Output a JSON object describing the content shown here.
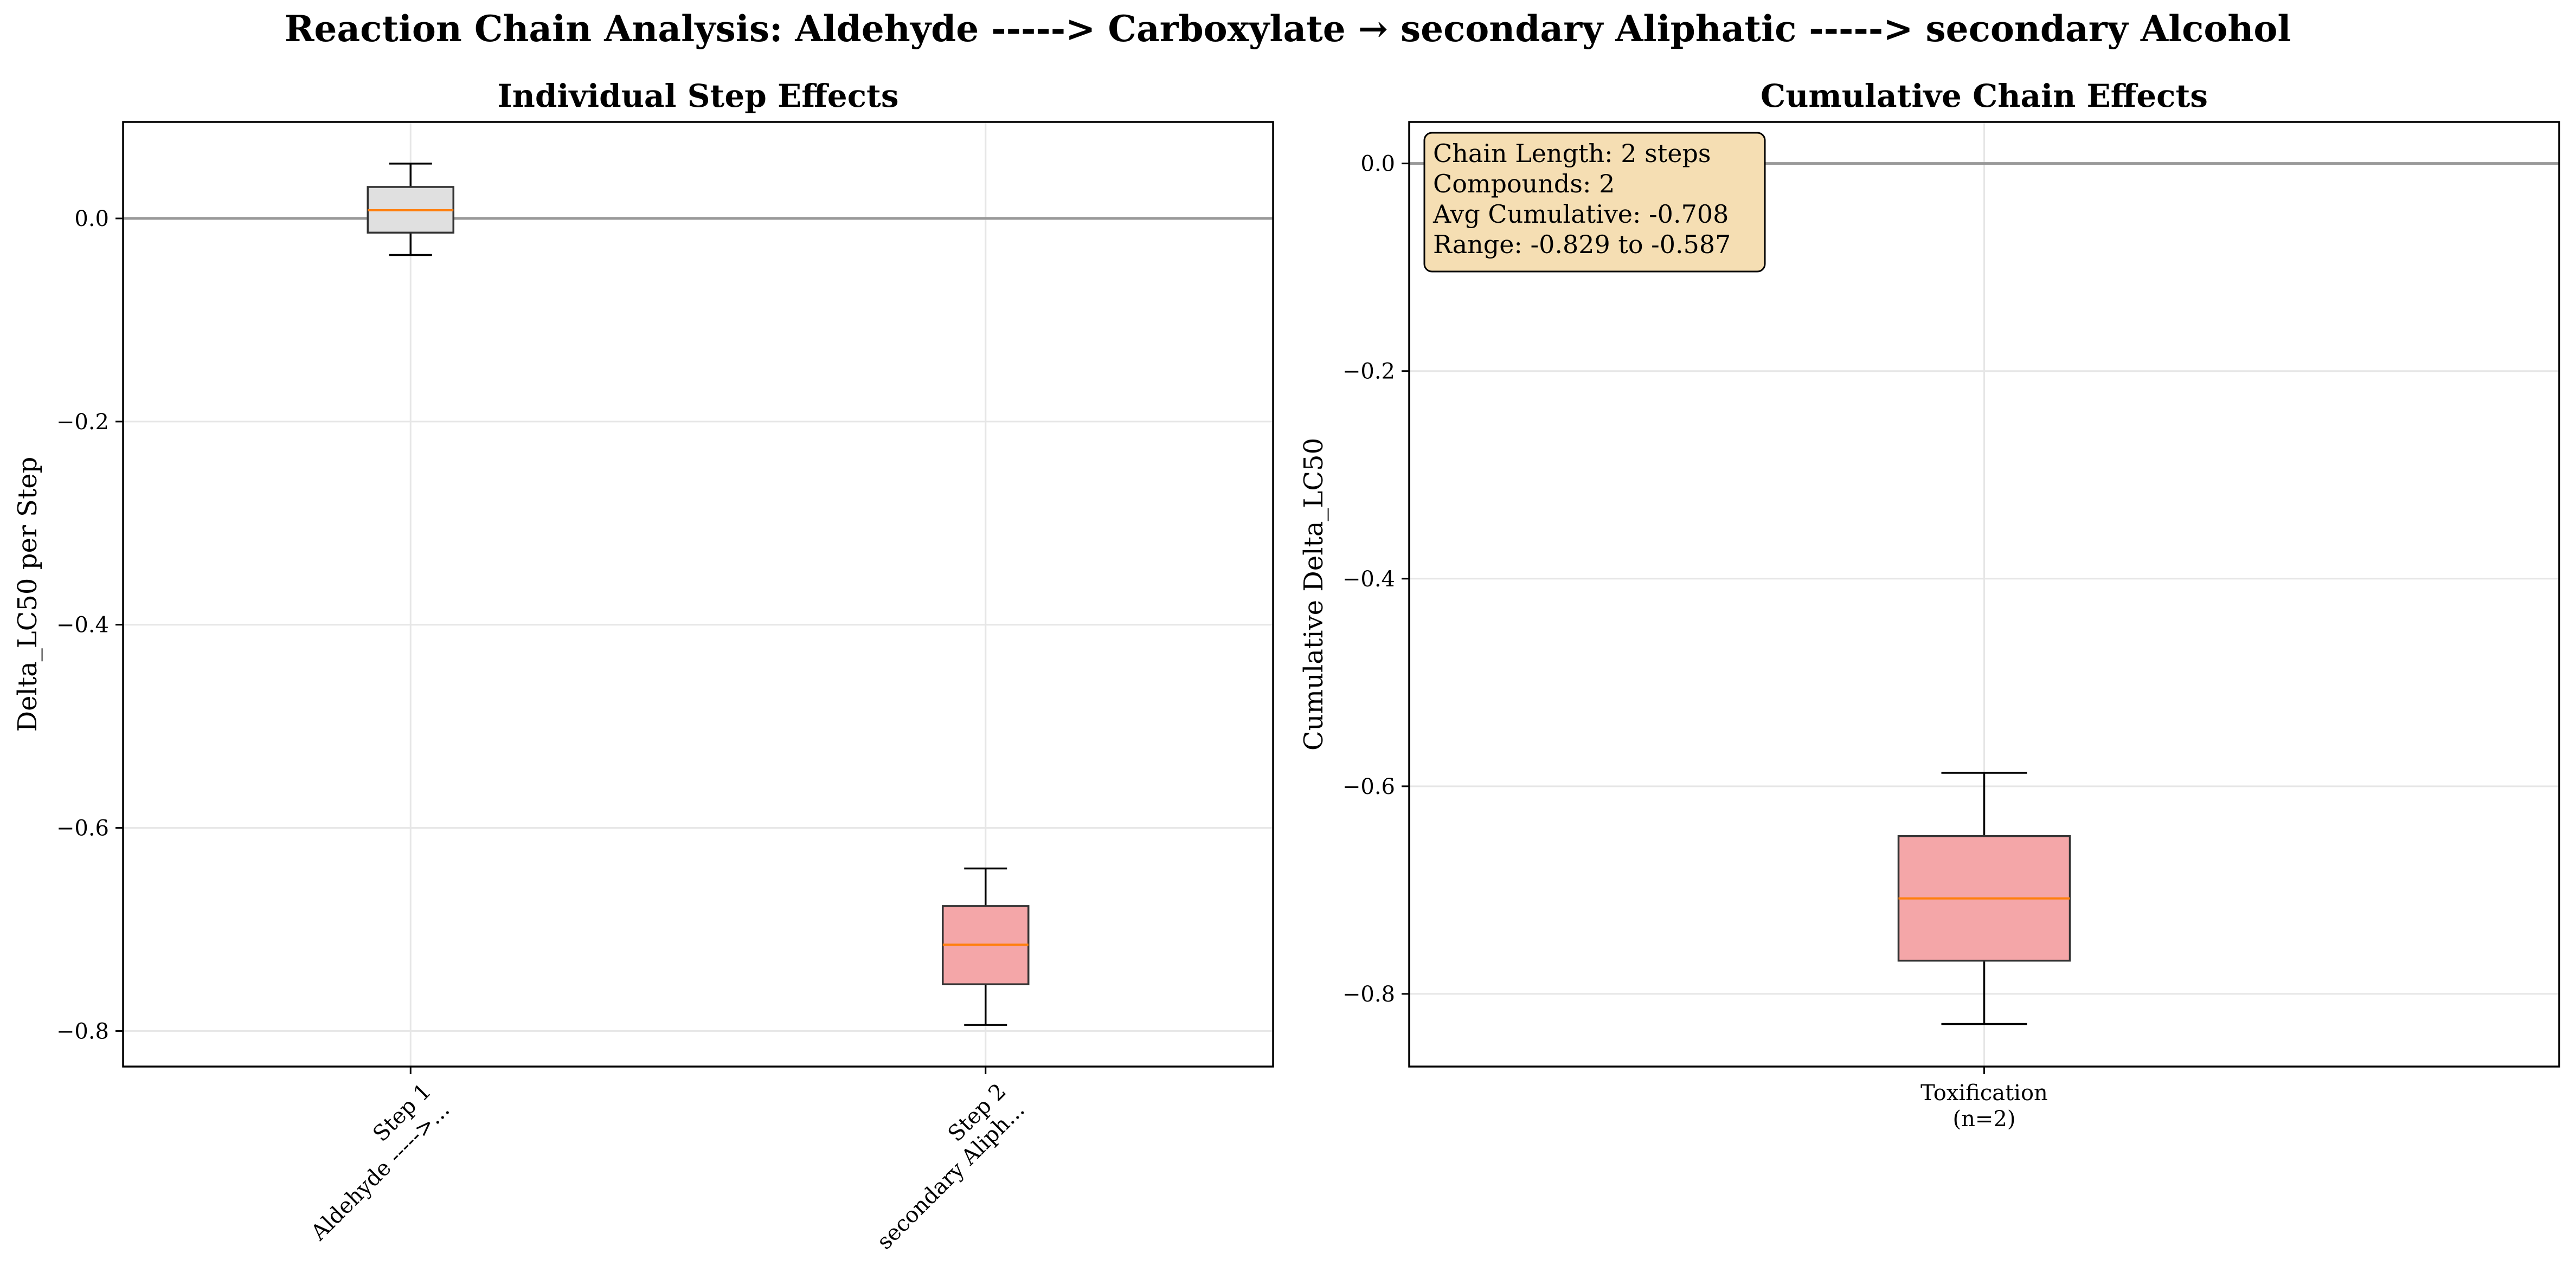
{
  "figure": {
    "suptitle": "Reaction Chain Analysis: Aldehyde -----> Carboxylate → secondary Aliphatic -----> secondary Alcohol"
  },
  "colors": {
    "neutral_box": "#e0e0e0",
    "toxification_box": "#f4a6a8",
    "median_line": "#ff7f0e",
    "zero_line": "#999999",
    "grid": "#e6e6e6",
    "textbox_fill": "#f5deb3"
  },
  "chart_data": [
    {
      "type": "box",
      "title": "Individual Step Effects",
      "xlabel": "",
      "ylabel": "Delta_LC50 per Step",
      "ylim": [
        -0.835,
        0.095
      ],
      "yticks": [
        0.0,
        -0.2,
        -0.4,
        -0.6,
        -0.8
      ],
      "ytick_labels": [
        "0.0",
        "−0.2",
        "−0.4",
        "−0.6",
        "−0.8"
      ],
      "grid": true,
      "zero_line": 0.0,
      "categories": [
        [
          "Step 1",
          "Aldehyde ----->..."
        ],
        [
          "Step 2",
          "secondary Aliph..."
        ]
      ],
      "xtick_rotation": 45,
      "boxes": [
        {
          "whisker_low": -0.036,
          "q1": -0.014,
          "median": 0.008,
          "q3": 0.031,
          "whisker_high": 0.054,
          "color_key": "neutral_box"
        },
        {
          "whisker_low": -0.794,
          "q1": -0.754,
          "median": -0.715,
          "q3": -0.677,
          "whisker_high": -0.64,
          "color_key": "toxification_box"
        }
      ]
    },
    {
      "type": "box",
      "title": "Cumulative Chain Effects",
      "xlabel": "",
      "ylabel": "Cumulative Delta_LC50",
      "ylim": [
        -0.87,
        0.04
      ],
      "yticks": [
        0.0,
        -0.2,
        -0.4,
        -0.6,
        -0.8
      ],
      "ytick_labels": [
        "0.0",
        "−0.2",
        "−0.4",
        "−0.6",
        "−0.8"
      ],
      "grid": true,
      "zero_line": 0.0,
      "categories": [
        [
          "Toxification",
          "(n=2)"
        ]
      ],
      "xtick_rotation": 0,
      "boxes": [
        {
          "whisker_low": -0.829,
          "q1": -0.768,
          "median": -0.708,
          "q3": -0.648,
          "whisker_high": -0.587,
          "color_key": "toxification_box"
        }
      ],
      "annotation": [
        "Chain Length: 2 steps",
        "Compounds: 2",
        "Avg Cumulative: -0.708",
        "Range: -0.829 to -0.587"
      ]
    }
  ]
}
